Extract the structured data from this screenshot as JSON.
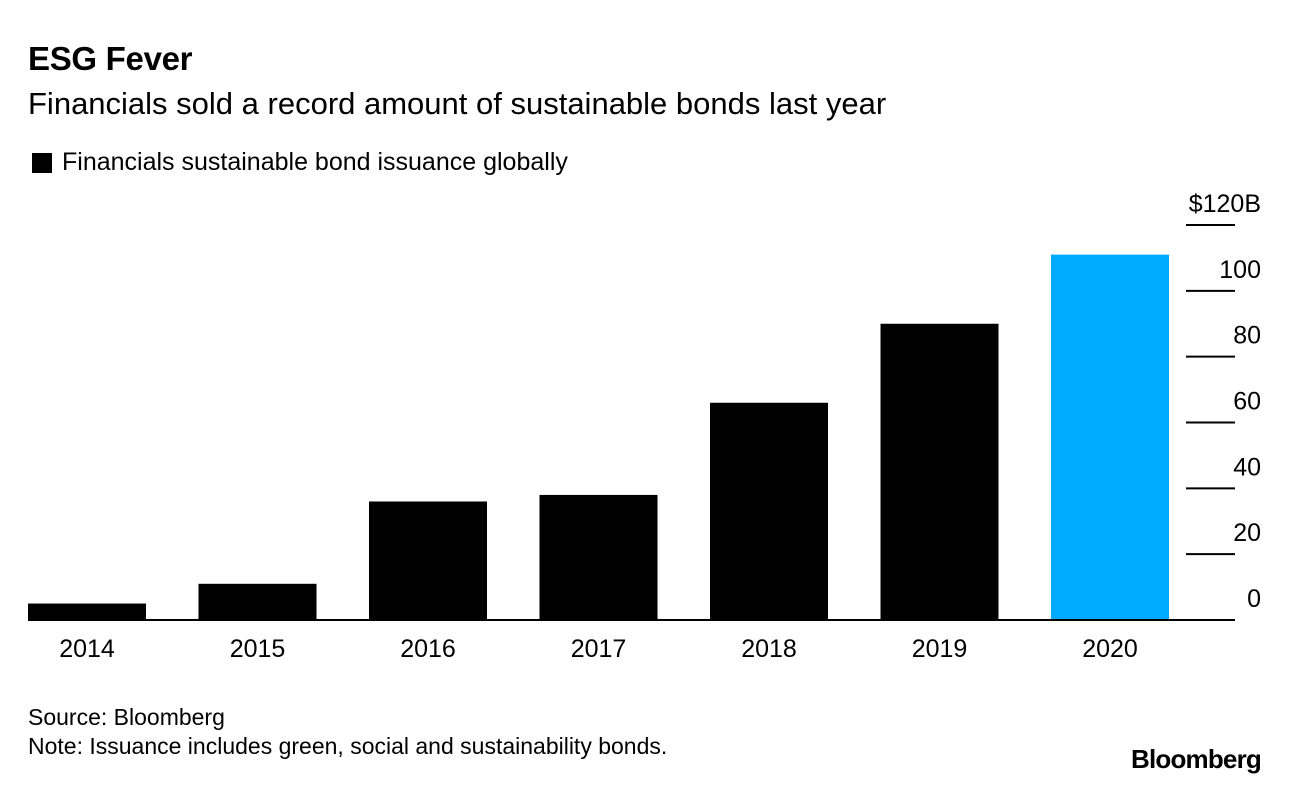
{
  "chart_data": {
    "type": "bar",
    "title": "ESG Fever",
    "subtitle": "Financials sold a record amount of sustainable bonds last year",
    "legend": [
      "Financials sustainable bond issuance globally"
    ],
    "categories": [
      "2014",
      "2015",
      "2016",
      "2017",
      "2018",
      "2019",
      "2020"
    ],
    "values": [
      5,
      11,
      36,
      38,
      66,
      90,
      111
    ],
    "highlight_index": 6,
    "colors": {
      "default": "#000000",
      "highlight": "#00AAFF"
    },
    "ylim": [
      0,
      120
    ],
    "y_ticks": [
      {
        "value": 0,
        "label": "0"
      },
      {
        "value": 20,
        "label": "20"
      },
      {
        "value": 40,
        "label": "40"
      },
      {
        "value": 60,
        "label": "60"
      },
      {
        "value": 80,
        "label": "80"
      },
      {
        "value": 100,
        "label": "100"
      },
      {
        "value": 120,
        "label": "$120B"
      }
    ],
    "y_axis_position": "right",
    "xlabel": "",
    "ylabel": ""
  },
  "footer": {
    "source": "Source: Bloomberg",
    "note": "Note: Issuance includes green, social and sustainability bonds."
  },
  "brand": "Bloomberg"
}
